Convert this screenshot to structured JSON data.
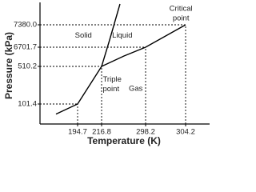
{
  "chart_data": {
    "type": "phase-diagram",
    "xlabel": "Temperature (K)",
    "ylabel": "Pressure (kPa)",
    "xlim": [
      170,
      320
    ],
    "ylim": [
      0,
      8000
    ],
    "xticks": [
      194.7,
      216.8,
      298.2,
      304.2
    ],
    "yticks": [
      101.4,
      510.2,
      6701.7,
      {
        "value": 7380,
        "label": "7380.0"
      }
    ],
    "color": "#000000",
    "series": [
      {
        "x": [
          180.5,
          194.7,
          216.8
        ],
        "values": [
          50,
          101.4,
          510.2
        ]
      },
      {
        "x": [
          216.8,
          231.6,
          250.8
        ],
        "values": [
          510.2,
          6919.7,
          8000
        ]
      },
      {
        "x": [
          216.8,
          258.2,
          298.2,
          304.2
        ],
        "values": [
          510.2,
          3864,
          6701.7,
          7380
        ]
      }
    ],
    "annotations": [
      {
        "text": [
          "Solid"
        ],
        "x": 200,
        "y": 7200
      },
      {
        "text": [
          "Liquid"
        ],
        "x": 255,
        "y": 7200
      },
      {
        "text": [
          "Gas"
        ],
        "x": 280,
        "y": 320
      },
      {
        "text": [
          "Triple",
          "point"
        ],
        "x": 219,
        "y": 420
      },
      {
        "text": [
          "Critical",
          "point"
        ],
        "x": 303.5,
        "y": 8000
      }
    ]
  }
}
